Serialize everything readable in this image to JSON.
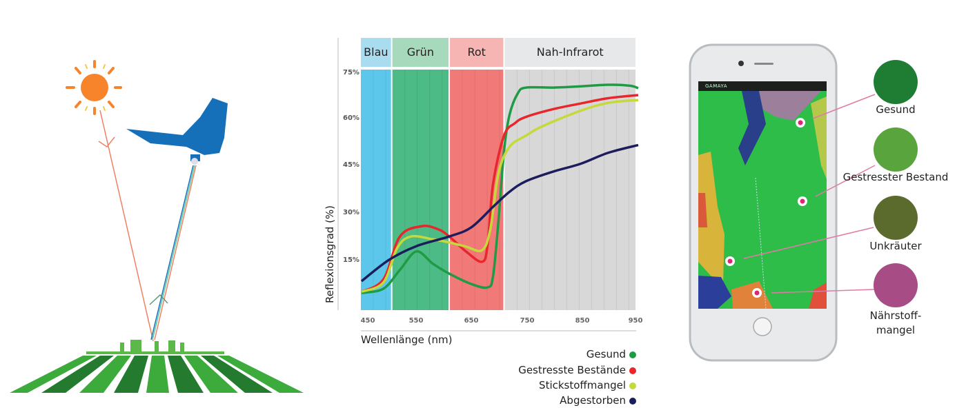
{
  "bands": [
    {
      "label": "Blau",
      "from": 450,
      "to": 505,
      "color": "#5cc7ea",
      "header": "#a9dcee"
    },
    {
      "label": "Grün",
      "from": 505,
      "to": 610,
      "color": "#4dbb85",
      "header": "#a7d9bd"
    },
    {
      "label": "Rot",
      "from": 610,
      "to": 710,
      "color": "#f17a79",
      "header": "#f6b4b3"
    },
    {
      "label": "Nah-Infrarot",
      "from": 710,
      "to": 955,
      "color": "#d8d8d8",
      "header": "#e6e8ea"
    }
  ],
  "chart_data": {
    "type": "line",
    "xlabel": "Wellenlänge (nm)",
    "ylabel": "Reflexionsgrad (%)",
    "xlim": [
      450,
      955
    ],
    "ylim": [
      0,
      75
    ],
    "xticks": [
      "450",
      "550",
      "650",
      "750",
      "850",
      "950"
    ],
    "yticks": [
      "75%",
      "60%",
      "45%",
      "30%",
      "15%"
    ],
    "legend_position": "bottom-right",
    "series": [
      {
        "name": "Gesund",
        "color": "#1f9a45",
        "points": [
          [
            450,
            4.6
          ],
          [
            490,
            6
          ],
          [
            520,
            12
          ],
          [
            550,
            17.9
          ],
          [
            580,
            14
          ],
          [
            610,
            10.8
          ],
          [
            650,
            7.5
          ],
          [
            680,
            6.4
          ],
          [
            690,
            10
          ],
          [
            700,
            28
          ],
          [
            710,
            50
          ],
          [
            720,
            61.6
          ],
          [
            735,
            68.5
          ],
          [
            750,
            70.4
          ],
          [
            800,
            70.4
          ],
          [
            850,
            70.8
          ],
          [
            900,
            71.3
          ],
          [
            940,
            71
          ],
          [
            955,
            70.2
          ]
        ]
      },
      {
        "name": "Gestresste Bestände",
        "color": "#e8262b",
        "points": [
          [
            450,
            5
          ],
          [
            490,
            9
          ],
          [
            520,
            22.7
          ],
          [
            560,
            26
          ],
          [
            590,
            25
          ],
          [
            610,
            22.7
          ],
          [
            640,
            18
          ],
          [
            670,
            14.6
          ],
          [
            680,
            20
          ],
          [
            690,
            39.5
          ],
          [
            710,
            55
          ],
          [
            730,
            59
          ],
          [
            750,
            61
          ],
          [
            800,
            63.5
          ],
          [
            850,
            65.3
          ],
          [
            900,
            67
          ],
          [
            955,
            68
          ]
        ]
      },
      {
        "name": "Stickstoffmangel",
        "color": "#c5d93a",
        "points": [
          [
            450,
            5
          ],
          [
            490,
            8
          ],
          [
            515,
            19
          ],
          [
            540,
            22.7
          ],
          [
            580,
            21.8
          ],
          [
            610,
            20.8
          ],
          [
            640,
            19.5
          ],
          [
            670,
            18.3
          ],
          [
            685,
            25
          ],
          [
            700,
            43
          ],
          [
            720,
            51.4
          ],
          [
            750,
            55
          ],
          [
            780,
            58
          ],
          [
            850,
            63
          ],
          [
            900,
            65.5
          ],
          [
            955,
            66.4
          ]
        ]
      },
      {
        "name": "Abgestorben",
        "color": "#1b1d5c",
        "points": [
          [
            450,
            8.4
          ],
          [
            500,
            15.2
          ],
          [
            550,
            19.6
          ],
          [
            610,
            22.7
          ],
          [
            650,
            25.6
          ],
          [
            690,
            32.2
          ],
          [
            720,
            37
          ],
          [
            750,
            40.4
          ],
          [
            800,
            43.5
          ],
          [
            850,
            46
          ],
          [
            900,
            49.5
          ],
          [
            955,
            52
          ]
        ]
      }
    ]
  },
  "phone": {
    "brand": "GAMAYA",
    "categories": [
      {
        "label": "Gesund",
        "color": "#1f7d33"
      },
      {
        "label": "Gestresster Bestand",
        "color": "#5aa43e"
      },
      {
        "label": "Unkräuter",
        "color": "#5b6b2e"
      },
      {
        "label": "Nährstoff-",
        "label2": "mangel",
        "color": "#a84c86"
      }
    ]
  },
  "illustration": {
    "sun_color": "#f7842a",
    "drone_color": "#1670b9",
    "ray_color": "#f08060",
    "field_colors": [
      "#3cab3c",
      "#247a2e"
    ]
  }
}
